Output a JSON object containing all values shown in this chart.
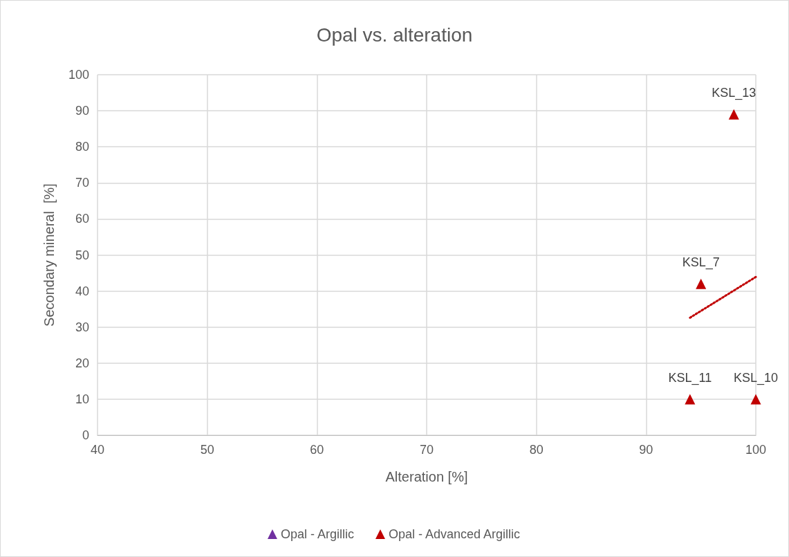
{
  "chart_data": {
    "type": "scatter",
    "title": "Opal vs. alteration",
    "xlabel": "Alteration [%]",
    "ylabel": "Secondary mineral  [%]",
    "xlim": [
      40,
      100
    ],
    "xticks": [
      40,
      50,
      60,
      70,
      80,
      90,
      100
    ],
    "ylim": [
      0,
      100
    ],
    "yticks": [
      0,
      10,
      20,
      30,
      40,
      50,
      60,
      70,
      80,
      90,
      100
    ],
    "grid": true,
    "legend": "bottom",
    "marker": "triangle",
    "series": [
      {
        "name": "Opal - Argillic",
        "color": "#7030a0"
      },
      {
        "name": "Opal - Advanced Argillic",
        "color": "#c00000",
        "x": [
          94,
          95,
          98,
          100
        ],
        "values": [
          10,
          42,
          89,
          10
        ]
      },
      {
        "type": "line",
        "color": "#c00000",
        "line_style": "dotted",
        "marker": "none",
        "x": [
          94,
          100
        ],
        "values": [
          32.6,
          43.9
        ]
      }
    ],
    "annotations": [
      {
        "text": "KSL_11",
        "x": 94,
        "y": 10
      },
      {
        "text": "KSL_7",
        "x": 95,
        "y": 42
      },
      {
        "text": "KSL_13",
        "x": 98,
        "y": 89
      },
      {
        "text": "KSL_10",
        "x": 100,
        "y": 10
      }
    ]
  }
}
